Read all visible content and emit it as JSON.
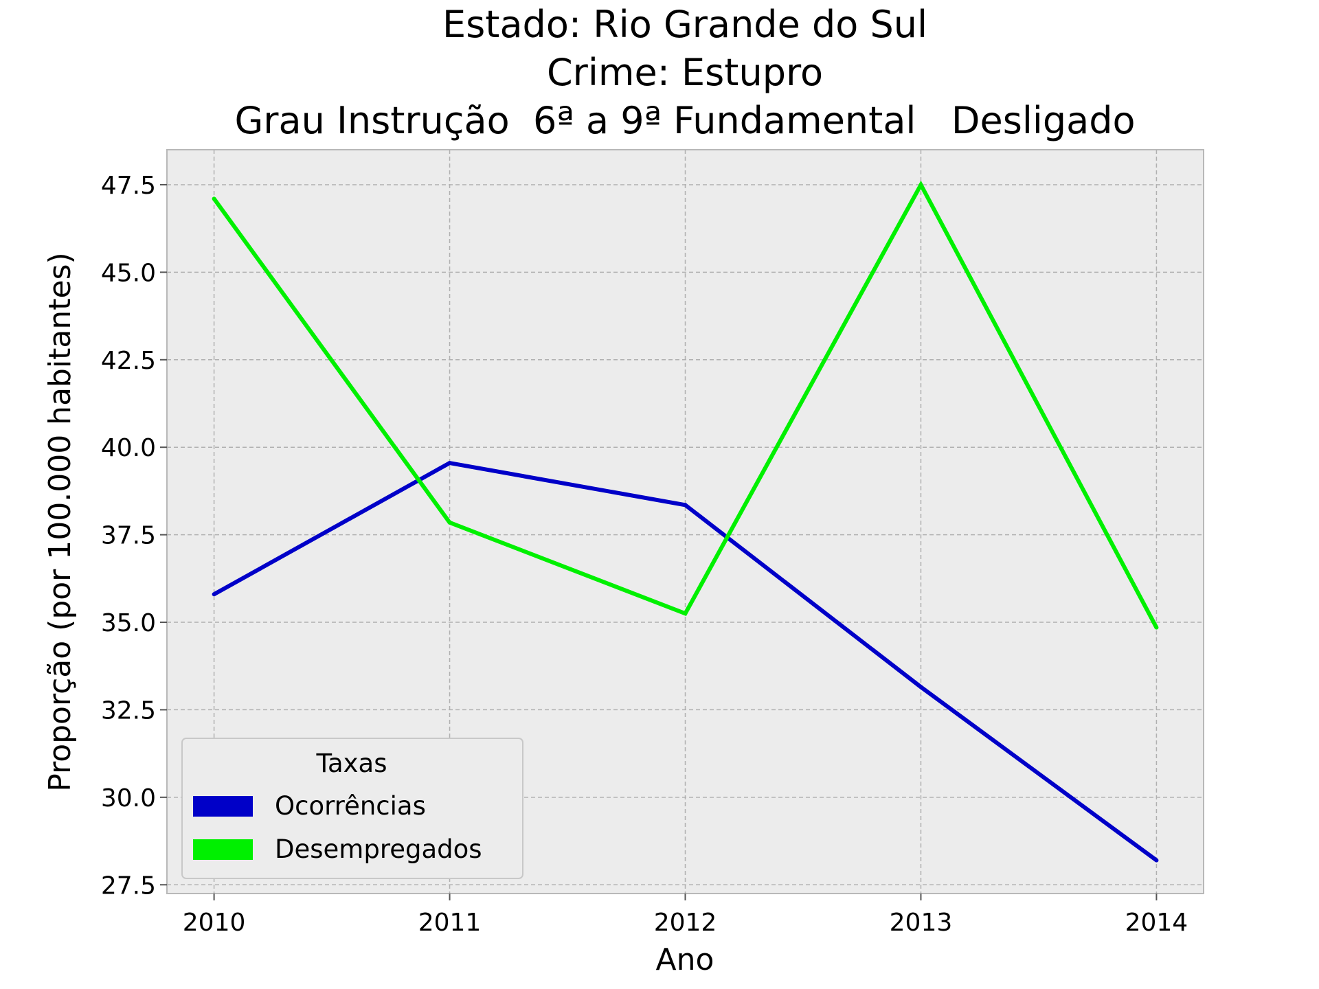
{
  "chart_data": {
    "type": "line",
    "title_lines": [
      "Estado: Rio Grande do Sul",
      "Crime: Estupro",
      "Grau Instrução  6ª a 9ª Fundamental   Desligado"
    ],
    "xlabel": "Ano",
    "ylabel": "Proporção (por 100.000 habitantes)",
    "x": [
      "2010",
      "2011",
      "2012",
      "2013",
      "2014"
    ],
    "xlim": [
      -0.2,
      4.2
    ],
    "ylim": [
      27.25,
      48.5
    ],
    "yticks": [
      "27.5",
      "30.0",
      "32.5",
      "35.0",
      "37.5",
      "40.0",
      "42.5",
      "45.0",
      "47.5"
    ],
    "grid": true,
    "legend": {
      "title": "Taxas",
      "position": "lower-left"
    },
    "series": [
      {
        "name": "Ocorrências",
        "color": "#0000c8",
        "values": [
          35.8,
          39.55,
          38.35,
          33.15,
          28.2
        ]
      },
      {
        "name": "Desempregados",
        "color": "#00f000",
        "values": [
          47.1,
          37.85,
          35.25,
          47.5,
          34.85
        ]
      }
    ]
  }
}
